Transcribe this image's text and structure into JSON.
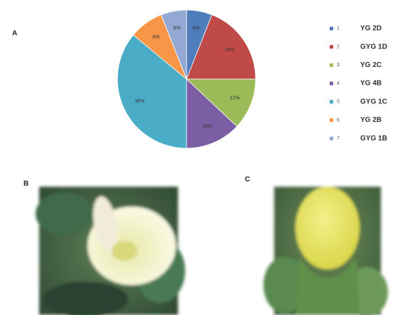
{
  "chart_data": {
    "type": "pie",
    "categories": [
      "YG 2D",
      "GYG 1D",
      "YG 2C",
      "YG 4B",
      "GYG 1C",
      "YG 2B",
      "GYG 1B"
    ],
    "legend_keys": [
      "1",
      "2",
      "3",
      "4",
      "5",
      "6",
      "7"
    ],
    "values": [
      6,
      19,
      12,
      13,
      36,
      8,
      6
    ],
    "value_labels": [
      "6%",
      "19%",
      "12%",
      "13%",
      "36%",
      "8%",
      "6%"
    ],
    "colors": [
      "#4f7cbb",
      "#bf4a47",
      "#9bbb59",
      "#7b5ea3",
      "#4aacc6",
      "#f79646",
      "#93a9d4"
    ]
  },
  "panels": {
    "a": "A",
    "b": "B",
    "c": "C"
  }
}
